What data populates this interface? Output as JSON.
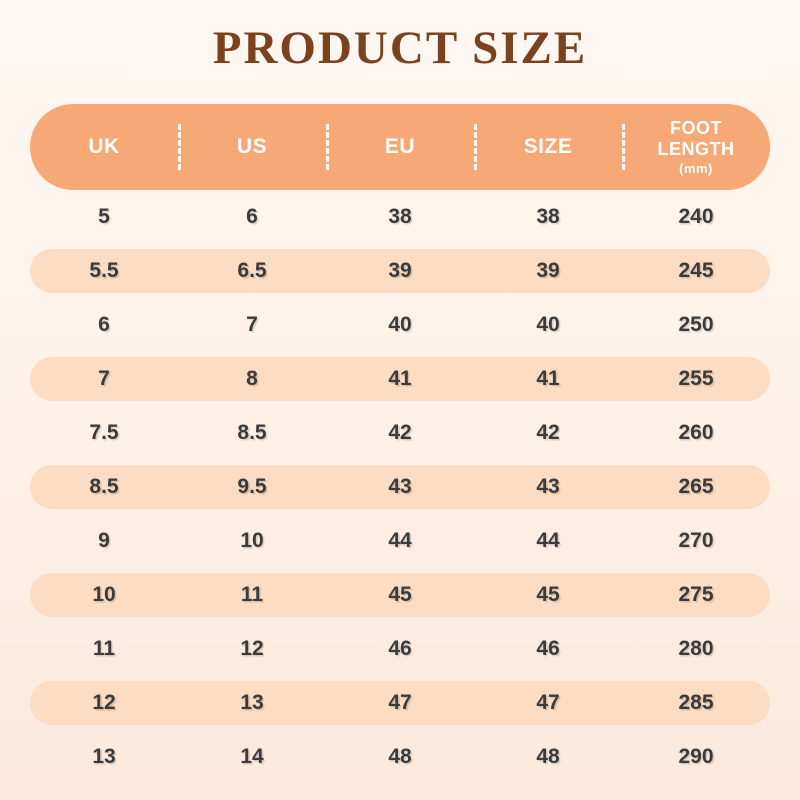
{
  "title": "PRODUCT SIZE",
  "table": {
    "headers": [
      {
        "label": "UK"
      },
      {
        "label": "US"
      },
      {
        "label": "EU"
      },
      {
        "label": "SIZE"
      },
      {
        "label": "FOOT LENGTH",
        "sub": "(mm)"
      }
    ],
    "rows": [
      [
        "5",
        "6",
        "38",
        "38",
        "240"
      ],
      [
        "5.5",
        "6.5",
        "39",
        "39",
        "245"
      ],
      [
        "6",
        "7",
        "40",
        "40",
        "250"
      ],
      [
        "7",
        "8",
        "41",
        "41",
        "255"
      ],
      [
        "7.5",
        "8.5",
        "42",
        "42",
        "260"
      ],
      [
        "8.5",
        "9.5",
        "43",
        "43",
        "265"
      ],
      [
        "9",
        "10",
        "44",
        "44",
        "270"
      ],
      [
        "10",
        "11",
        "45",
        "45",
        "275"
      ],
      [
        "11",
        "12",
        "46",
        "46",
        "280"
      ],
      [
        "12",
        "13",
        "47",
        "47",
        "285"
      ],
      [
        "13",
        "14",
        "48",
        "48",
        "290"
      ]
    ]
  },
  "chart_data": {
    "type": "table",
    "title": "PRODUCT SIZE",
    "columns": [
      "UK",
      "US",
      "EU",
      "SIZE",
      "FOOT LENGTH (mm)"
    ],
    "rows": [
      [
        "5",
        "6",
        "38",
        "38",
        "240"
      ],
      [
        "5.5",
        "6.5",
        "39",
        "39",
        "245"
      ],
      [
        "6",
        "7",
        "40",
        "40",
        "250"
      ],
      [
        "7",
        "8",
        "41",
        "41",
        "255"
      ],
      [
        "7.5",
        "8.5",
        "42",
        "42",
        "260"
      ],
      [
        "8.5",
        "9.5",
        "43",
        "43",
        "265"
      ],
      [
        "9",
        "10",
        "44",
        "44",
        "270"
      ],
      [
        "10",
        "11",
        "45",
        "45",
        "275"
      ],
      [
        "11",
        "12",
        "46",
        "46",
        "280"
      ],
      [
        "12",
        "13",
        "47",
        "47",
        "285"
      ],
      [
        "13",
        "14",
        "48",
        "48",
        "290"
      ]
    ],
    "layout_hints": {
      "header_style": "orange pill with white text and dashed column dividers",
      "alternating_rows": "odd data rows plain, even data rows peach pill highlight"
    }
  },
  "colors": {
    "background_top": "#fef7f1",
    "background_bottom": "#fce9dc",
    "header_bg": "#f6a876",
    "header_text": "#ffffff",
    "row_alt_bg": "#fcdcc2",
    "row_text": "#3b3b3b",
    "title_color": "#7a421f"
  }
}
